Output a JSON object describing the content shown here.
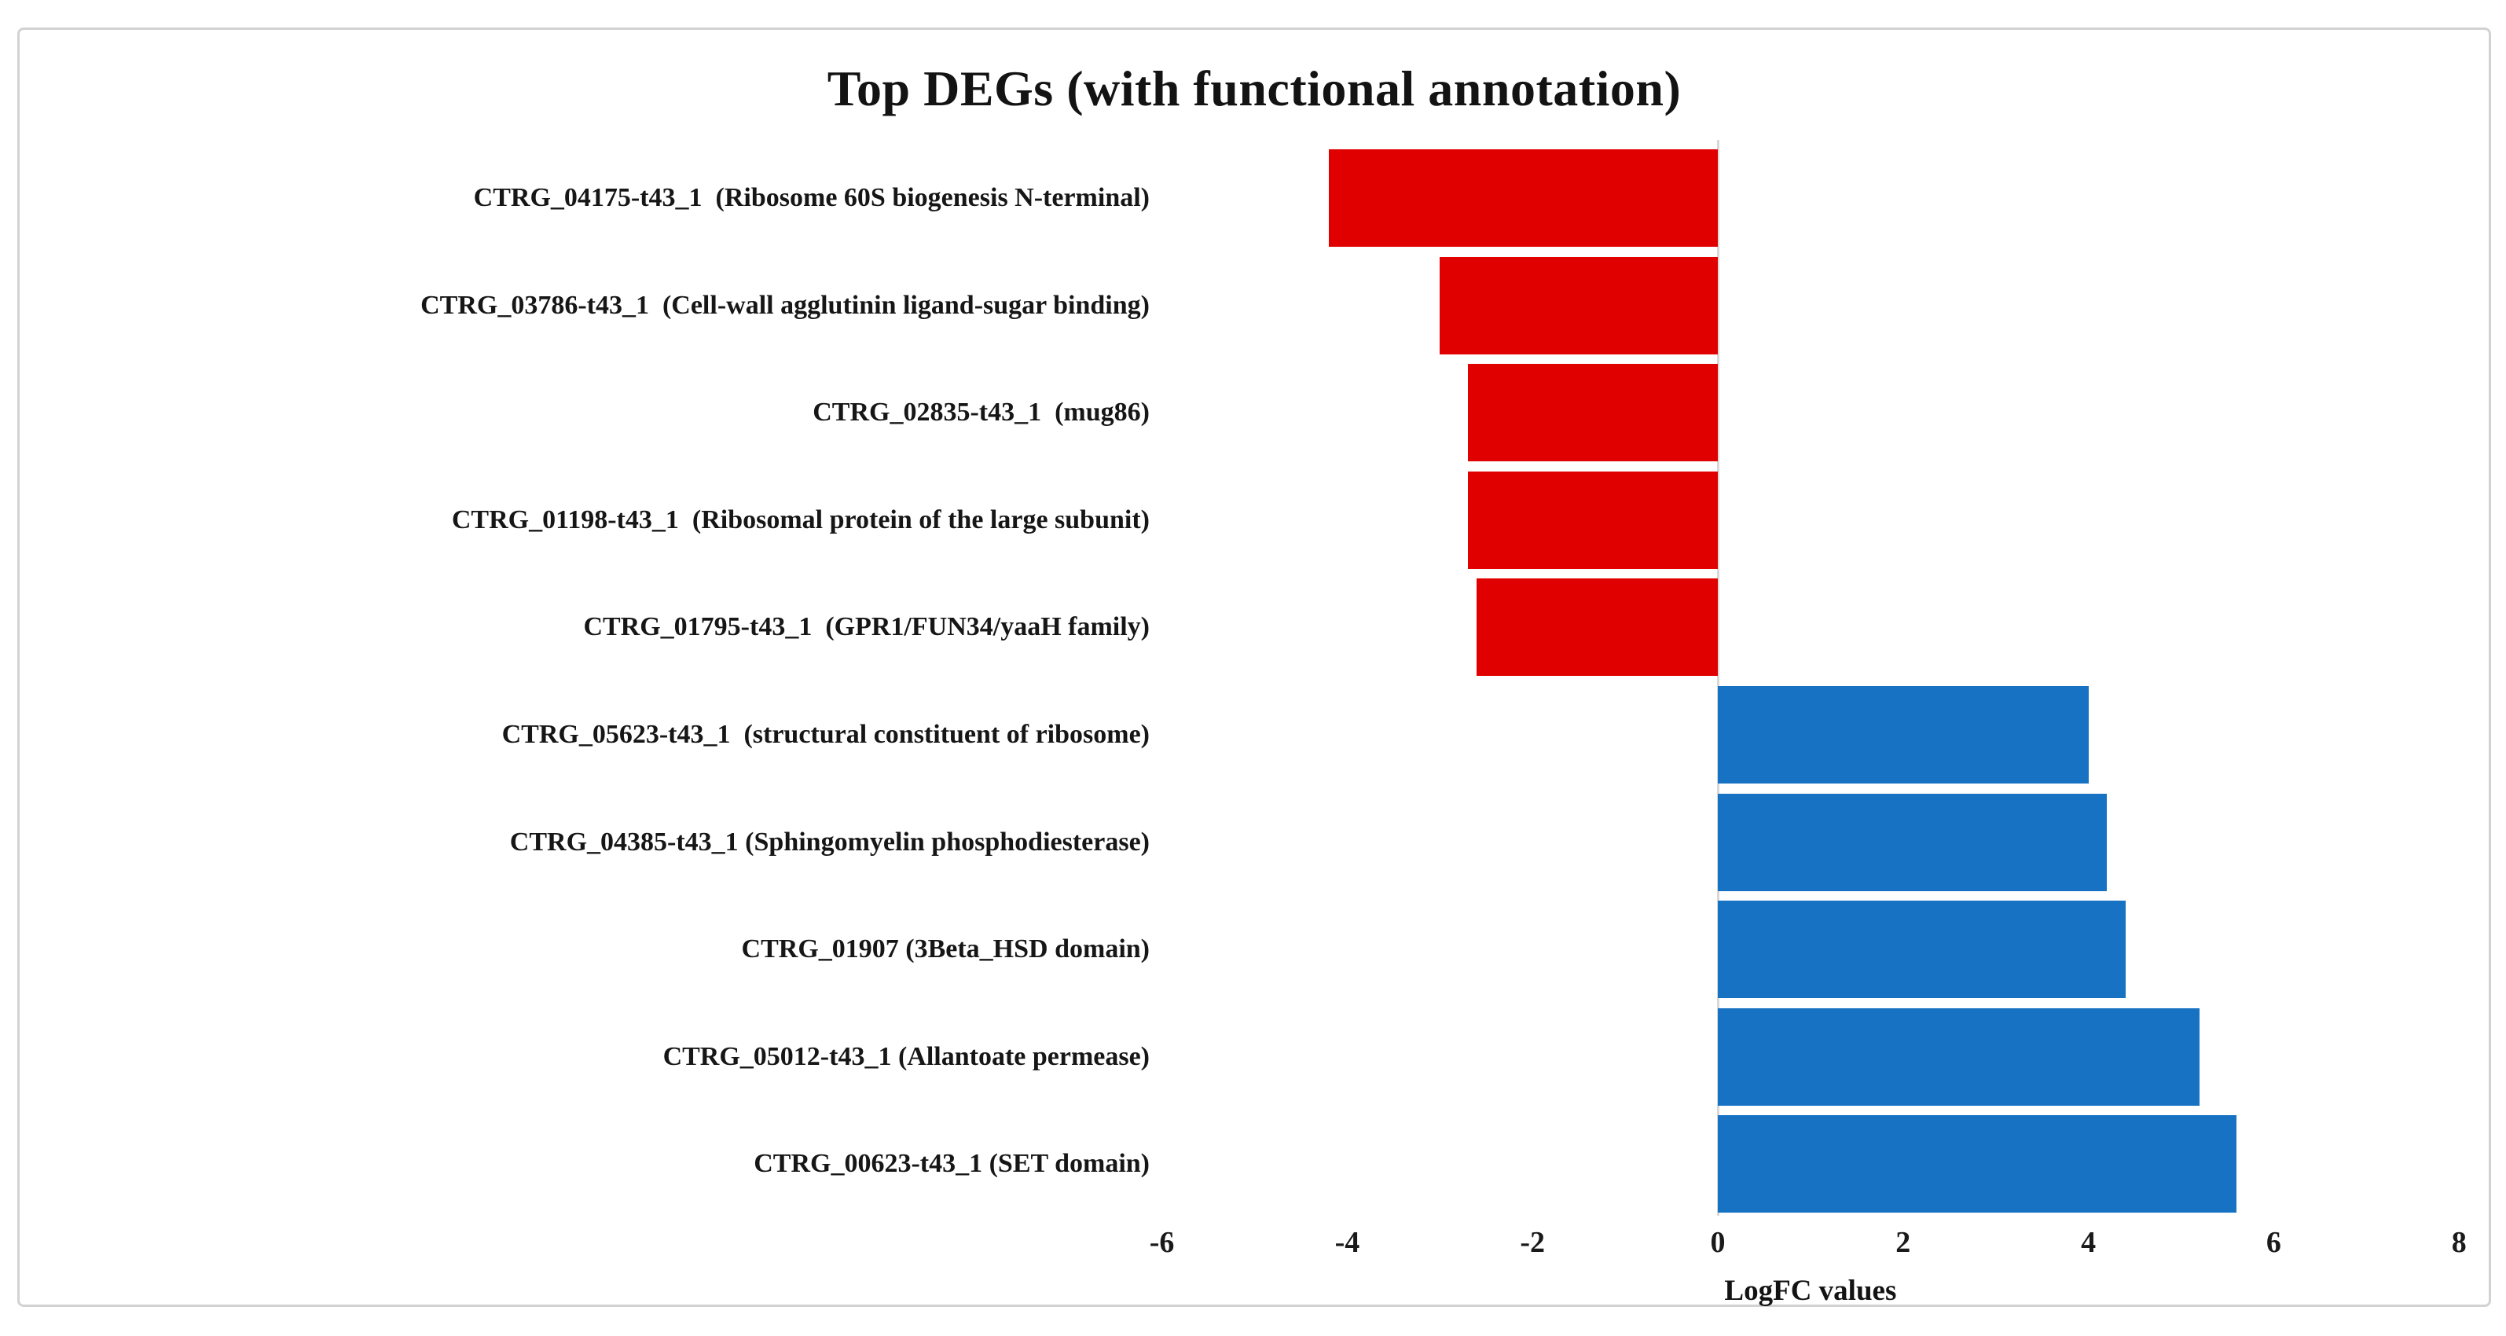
{
  "chart_data": {
    "type": "bar",
    "orientation": "horizontal",
    "title": "Top DEGs (with functional annotation)",
    "xlabel": "LogFC values",
    "ylabel": "",
    "categories": [
      "CTRG_04175-t43_1  (Ribosome 60S biogenesis N-terminal)",
      "CTRG_03786-t43_1  (Cell-wall agglutinin ligand-sugar binding)",
      "CTRG_02835-t43_1  (mug86)",
      "CTRG_01198-t43_1  (Ribosomal protein of the large subunit)",
      "CTRG_01795-t43_1  (GPR1/FUN34/yaaH family)",
      "CTRG_05623-t43_1  (structural constituent of ribosome)",
      "CTRG_04385-t43_1 (Sphingomyelin phosphodiesterase)",
      "CTRG_01907 (3Beta_HSD domain)",
      "CTRG_05012-t43_1 (Allantoate permease)",
      "CTRG_00623-t43_1 (SET domain)"
    ],
    "values": [
      -4.2,
      -3.0,
      -2.7,
      -2.7,
      -2.6,
      4.0,
      4.2,
      4.4,
      5.2,
      5.6
    ],
    "xticks": [
      -6,
      -4,
      -2,
      0,
      2,
      4,
      6,
      8
    ],
    "xlim": [
      -6,
      8
    ],
    "negative_color": "#e00000",
    "positive_color": "#1772c4",
    "axis_line_color": "#d8d8d8",
    "legend": "none",
    "grid": "zero-axis-line-only"
  },
  "frame": {
    "border_color": "#d2d2d2",
    "background": "#ffffff"
  }
}
